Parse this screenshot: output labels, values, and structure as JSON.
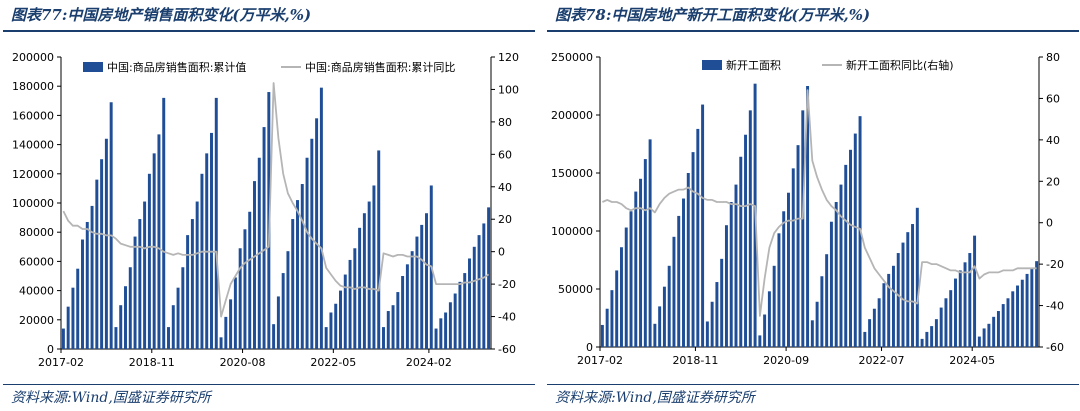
{
  "left": {
    "title": "图表77:中国房地产销售面积变化(万平米,%)",
    "source": "资料来源:Wind,国盛证券研究所"
  },
  "right": {
    "title": "图表78:中国房地产新开工面积变化(万平米,%)",
    "source": "资料来源:Wind,国盛证券研究所"
  },
  "colors": {
    "bar": "#1f4e96",
    "line": "#b5b5b5",
    "title": "#1a3e6e"
  },
  "chart_data": [
    {
      "type": "bar",
      "title": "图表77:中国房地产销售面积变化(万平米,%)",
      "x_tick_labels": [
        "2017-02",
        "2018-11",
        "2020-08",
        "2022-05",
        "2024-02"
      ],
      "y_left": {
        "lim": [
          0,
          200000
        ],
        "ticks": [
          "0",
          "20000",
          "40000",
          "60000",
          "80000",
          "100000",
          "120000",
          "140000",
          "160000",
          "180000",
          "200000"
        ]
      },
      "y_right": {
        "lim": [
          -60,
          120
        ],
        "ticks": [
          "-60",
          "-40",
          "-20",
          "0",
          "20",
          "40",
          "60",
          "80",
          "100",
          "120"
        ]
      },
      "series": [
        {
          "name": "中国:商品房销售面积:累计值",
          "type": "bar",
          "axis": "left",
          "values": [
            14000,
            29000,
            42000,
            55000,
            75000,
            87000,
            98000,
            116000,
            130000,
            144000,
            169000,
            15000,
            30000,
            43000,
            56000,
            77000,
            89000,
            101000,
            120000,
            134000,
            147000,
            172000,
            15000,
            30000,
            42000,
            56000,
            78000,
            89000,
            101000,
            120000,
            134000,
            148000,
            172000,
            8000,
            22000,
            34000,
            49000,
            69000,
            82000,
            94000,
            115000,
            131000,
            152000,
            176000,
            17000,
            36000,
            52000,
            67000,
            89000,
            102000,
            113000,
            131000,
            144000,
            158000,
            179000,
            15000,
            25000,
            31000,
            40000,
            51000,
            61000,
            69000,
            83000,
            93000,
            101000,
            112000,
            136000,
            15000,
            26000,
            30000,
            39000,
            50000,
            58000,
            67000,
            77000,
            85000,
            93000,
            112000,
            14000,
            21000,
            25000,
            32000,
            38000,
            46000,
            52000,
            62000,
            70000,
            78000,
            86000,
            97000
          ]
        },
        {
          "name": "中国:商品房销售面积:累计同比",
          "type": "line",
          "axis": "right",
          "values": [
            25,
            19,
            16,
            16,
            14,
            14,
            12,
            11,
            11,
            10,
            10,
            8,
            5,
            4,
            3,
            3,
            3,
            2,
            3,
            3,
            2,
            0,
            -1,
            -2,
            -1,
            -2,
            -2,
            -2,
            -1,
            0,
            0,
            0,
            0,
            -40,
            -30,
            -20,
            -15,
            -10,
            -7,
            -5,
            -3,
            -1,
            1,
            3,
            104,
            70,
            48,
            36,
            30,
            25,
            19,
            12,
            8,
            5,
            2,
            -10,
            -14,
            -18,
            -21,
            -22,
            -22,
            -23,
            -22,
            -22,
            -23,
            -23,
            -24,
            -1,
            -2,
            -3,
            -2,
            -2,
            -3,
            -3,
            -3,
            -5,
            -8,
            -9,
            -20,
            -20,
            -20,
            -20,
            -20,
            -20,
            -19,
            -19,
            -18,
            -17,
            -16,
            -14
          ]
        }
      ],
      "legend_position": "top"
    },
    {
      "type": "bar",
      "title": "图表78:中国房地产新开工面积变化(万平米,%)",
      "x_tick_labels": [
        "2017-02",
        "2018-11",
        "2020-09",
        "2022-07",
        "2024-05"
      ],
      "y_left": {
        "lim": [
          0,
          250000
        ],
        "ticks": [
          "0",
          "50000",
          "100000",
          "150000",
          "200000",
          "250000"
        ]
      },
      "y_right": {
        "lim": [
          -60,
          80
        ],
        "ticks": [
          "-60",
          "-40",
          "-20",
          "0",
          "20",
          "40",
          "60",
          "80"
        ]
      },
      "series": [
        {
          "name": "新开工面积",
          "type": "bar",
          "axis": "left",
          "values": [
            19000,
            33000,
            49000,
            66000,
            86000,
            103000,
            117000,
            134000,
            145000,
            162000,
            179000,
            20000,
            35000,
            52000,
            70000,
            95000,
            113000,
            128000,
            150000,
            168000,
            188000,
            209000,
            22000,
            39000,
            56000,
            76000,
            105000,
            125000,
            140000,
            164000,
            183000,
            204000,
            227000,
            10000,
            28000,
            48000,
            70000,
            98000,
            117000,
            133000,
            154000,
            174000,
            204000,
            225000,
            23000,
            39000,
            61000,
            80000,
            108000,
            125000,
            140000,
            157000,
            170000,
            184000,
            199000,
            13000,
            24000,
            33000,
            42000,
            55000,
            63000,
            70000,
            81000,
            90000,
            99000,
            106000,
            120000,
            7000,
            13000,
            18000,
            24000,
            34000,
            42000,
            49000,
            59000,
            66000,
            73000,
            81000,
            96000,
            9000,
            16000,
            20000,
            26000,
            31000,
            37000,
            42000,
            48000,
            53000,
            58000,
            63000,
            68000,
            74000
          ]
        },
        {
          "name": "新开工面积同比(右轴)",
          "type": "line",
          "axis": "right",
          "values": [
            10,
            11,
            10,
            10,
            9,
            7,
            6,
            7,
            7,
            6,
            7,
            5,
            9,
            12,
            14,
            15,
            16,
            16,
            17,
            15,
            14,
            12,
            11,
            11,
            10,
            10,
            10,
            9,
            9,
            8,
            8,
            9,
            8,
            -45,
            -27,
            -12,
            -5,
            -2,
            0,
            1,
            1,
            2,
            2,
            64,
            30,
            22,
            16,
            11,
            8,
            6,
            3,
            1,
            -1,
            -2,
            -3,
            -12,
            -17,
            -22,
            -25,
            -28,
            -31,
            -33,
            -35,
            -37,
            -38,
            -38,
            -39,
            -19,
            -19,
            -20,
            -20,
            -21,
            -22,
            -23,
            -23,
            -24,
            -24,
            -24,
            -21,
            -27,
            -25,
            -24,
            -24,
            -24,
            -23,
            -23,
            -23,
            -22,
            -22,
            -22,
            -22,
            -22
          ]
        }
      ],
      "legend_position": "top"
    }
  ]
}
